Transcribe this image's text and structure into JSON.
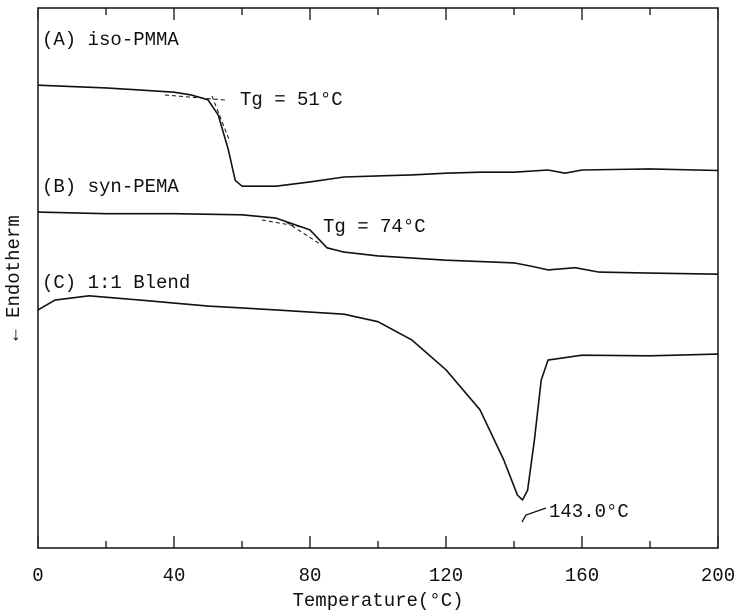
{
  "chart_data": {
    "type": "line",
    "x_label": "Temperature(°C)",
    "y_label": "← Endotherm",
    "xlim": [
      0,
      200
    ],
    "xticks": [
      0,
      40,
      80,
      120,
      160,
      200
    ],
    "ylim": [
      0,
      100
    ],
    "series": [
      {
        "name": "(A) iso-PMMA",
        "color": "#111111",
        "x": [
          0,
          20,
          40,
          45,
          50,
          53,
          56,
          58,
          60,
          70,
          80,
          90,
          100,
          110,
          120,
          130,
          140,
          150,
          155,
          160,
          180,
          200
        ],
        "values": [
          85.7,
          85.2,
          84.4,
          83.9,
          83.0,
          80.2,
          73.7,
          68.1,
          67.0,
          67.0,
          67.8,
          68.7,
          68.9,
          69.1,
          69.4,
          69.6,
          69.6,
          70.0,
          69.4,
          70.0,
          70.2,
          69.9
        ]
      },
      {
        "name": "(B) syn-PEMA",
        "color": "#111111",
        "x": [
          0,
          20,
          40,
          60,
          70,
          80,
          85,
          90,
          100,
          120,
          140,
          145,
          150,
          158,
          165,
          180,
          200
        ],
        "values": [
          62.2,
          61.9,
          61.9,
          61.7,
          61.1,
          58.9,
          55.6,
          54.8,
          54.1,
          53.3,
          52.8,
          52.2,
          51.5,
          51.9,
          51.1,
          50.9,
          50.7
        ]
      },
      {
        "name": "(C) 1:1 Blend",
        "color": "#111111",
        "x": [
          0,
          5,
          15,
          30,
          50,
          70,
          90,
          100,
          110,
          120,
          130,
          137,
          141,
          142.5,
          144,
          146,
          148,
          150,
          160,
          180,
          200
        ],
        "values": [
          44.1,
          45.9,
          46.7,
          45.9,
          44.8,
          44.1,
          43.3,
          41.9,
          38.5,
          33.0,
          25.6,
          16.3,
          9.8,
          8.9,
          10.7,
          20.0,
          31.1,
          34.8,
          35.7,
          35.6,
          35.9
        ]
      }
    ],
    "annotations": [
      "Tg = 51°C",
      "Tg = 74°C",
      "143.0°C"
    ]
  }
}
